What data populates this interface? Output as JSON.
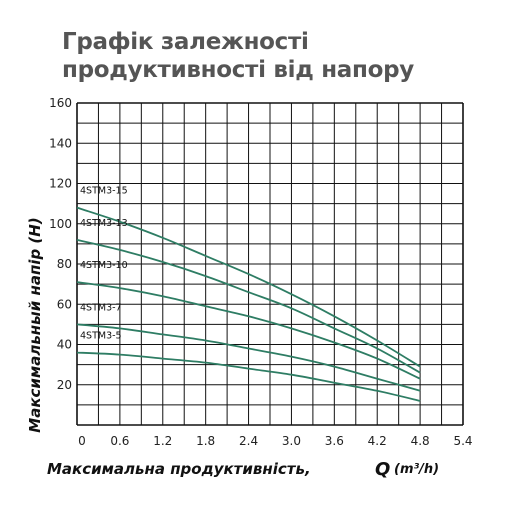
{
  "chart_data": {
    "type": "line",
    "title": "Графік залежності продуктивності від напору",
    "xlabel": "Максимальна продуктивність,",
    "xlabel_symbol": "Q",
    "xlabel_unit": "(m³/h)",
    "ylabel": "Максимальный напір (Н)",
    "xlim": [
      0,
      5.4
    ],
    "ylim": [
      0,
      160
    ],
    "xticks": [
      "0",
      "0.6",
      "1.2",
      "1.8",
      "2.4",
      "3.0",
      "3.6",
      "4.2",
      "4.8",
      "5.4"
    ],
    "yticks": [
      "20",
      "40",
      "60",
      "80",
      "100",
      "120",
      "140",
      "160"
    ],
    "grid": true,
    "line_color": "#2e7d64",
    "series": [
      {
        "name": "4STM3-15",
        "x": [
          0,
          0.6,
          1.2,
          1.8,
          2.4,
          3.0,
          3.6,
          4.2,
          4.8
        ],
        "y": [
          108,
          101,
          93,
          84,
          75,
          65,
          54,
          42,
          29
        ]
      },
      {
        "name": "4STM3-13",
        "x": [
          0,
          0.6,
          1.2,
          1.8,
          2.4,
          3.0,
          3.6,
          4.2,
          4.8
        ],
        "y": [
          92,
          87,
          81,
          74,
          66,
          58,
          48,
          38,
          26
        ]
      },
      {
        "name": "4STM3-10",
        "x": [
          0,
          0.6,
          1.2,
          1.8,
          2.4,
          3.0,
          3.6,
          4.2,
          4.8
        ],
        "y": [
          71,
          68,
          64,
          59,
          54,
          48,
          41,
          33,
          23
        ]
      },
      {
        "name": "4STM3-7",
        "x": [
          0,
          0.6,
          1.2,
          1.8,
          2.4,
          3.0,
          3.6,
          4.2,
          4.8
        ],
        "y": [
          50,
          48,
          45,
          42,
          38,
          34,
          29,
          23,
          17
        ]
      },
      {
        "name": "4STM3-5",
        "x": [
          0,
          0.6,
          1.2,
          1.8,
          2.4,
          3.0,
          3.6,
          4.2,
          4.8
        ],
        "y": [
          36,
          35,
          33,
          31,
          28,
          25,
          21,
          17,
          12
        ]
      }
    ]
  }
}
